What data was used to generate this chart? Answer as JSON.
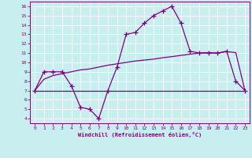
{
  "xlabel": "Windchill (Refroidissement éolien,°C)",
  "x_data": [
    0,
    1,
    2,
    3,
    4,
    5,
    6,
    7,
    8,
    9,
    10,
    11,
    12,
    13,
    14,
    15,
    16,
    17,
    18,
    19,
    20,
    21,
    22,
    23
  ],
  "line1_y": [
    7.0,
    9.0,
    9.0,
    9.0,
    7.5,
    5.2,
    5.0,
    4.0,
    7.0,
    9.5,
    13.0,
    13.2,
    14.2,
    15.0,
    15.5,
    16.0,
    14.2,
    11.2,
    11.0,
    11.0,
    11.0,
    11.2,
    8.0,
    7.0
  ],
  "line2_y": [
    7.0,
    8.2,
    8.6,
    8.8,
    9.0,
    9.2,
    9.3,
    9.5,
    9.7,
    9.85,
    10.0,
    10.15,
    10.25,
    10.35,
    10.5,
    10.62,
    10.75,
    10.88,
    11.0,
    11.05,
    11.0,
    11.15,
    11.05,
    7.0
  ],
  "line3_y": [
    7.0,
    7.0,
    7.0,
    7.0,
    7.0,
    7.0,
    7.0,
    7.0,
    7.0,
    7.0,
    7.0,
    7.0,
    7.0,
    7.0,
    7.0,
    7.0,
    7.0,
    7.0,
    7.0,
    7.0,
    7.0,
    7.0,
    7.0,
    7.0
  ],
  "line_color": "#800080",
  "bg_color": "#c8eef0",
  "grid_color": "#b0d8dc",
  "ylim": [
    3.5,
    16.5
  ],
  "xlim": [
    -0.5,
    23.5
  ],
  "yticks": [
    4,
    5,
    6,
    7,
    8,
    9,
    10,
    11,
    12,
    13,
    14,
    15,
    16
  ],
  "xticks": [
    0,
    1,
    2,
    3,
    4,
    5,
    6,
    7,
    8,
    9,
    10,
    11,
    12,
    13,
    14,
    15,
    16,
    17,
    18,
    19,
    20,
    21,
    22,
    23
  ],
  "marker": "+",
  "markersize": 4,
  "linewidth": 0.9
}
